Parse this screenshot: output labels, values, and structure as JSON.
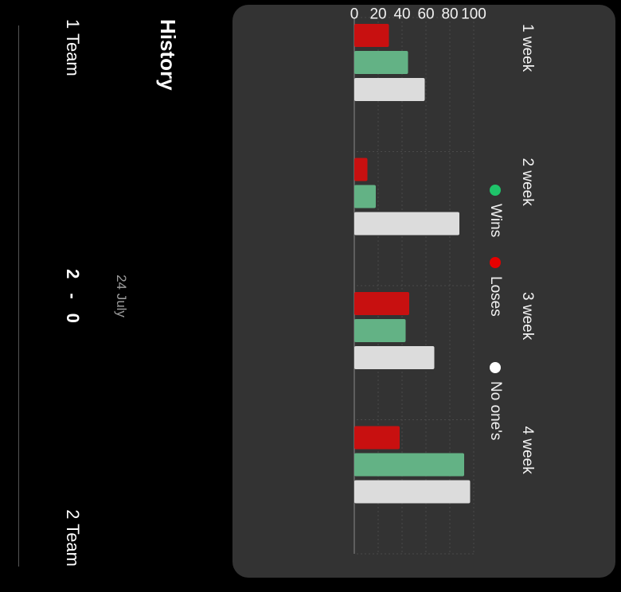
{
  "chart_data": {
    "type": "bar",
    "categories": [
      "1 week",
      "2 week",
      "3 week",
      "4 week"
    ],
    "series": [
      {
        "name": "Loses",
        "color": "#c81010",
        "values": [
          29,
          11,
          46,
          38
        ]
      },
      {
        "name": "Wins",
        "color": "#63b285",
        "values": [
          45,
          18,
          43,
          92
        ]
      },
      {
        "name": "No one's",
        "color": "#dcdcdc",
        "values": [
          59,
          88,
          67,
          97
        ]
      }
    ],
    "yticks": [
      0,
      20,
      40,
      60,
      80,
      100
    ],
    "ylim": [
      0,
      100
    ],
    "grid": true
  },
  "legend": [
    {
      "label": "Wins",
      "color": "#1fc46a"
    },
    {
      "label": "Loses",
      "color": "#e60000"
    },
    {
      "label": "No one's",
      "color": "#ffffff"
    }
  ],
  "history": {
    "title": "History",
    "date": "24 July",
    "team1": "1 Team",
    "team2": "2 Team",
    "score1": "2",
    "separator": "-",
    "score2": "0"
  }
}
